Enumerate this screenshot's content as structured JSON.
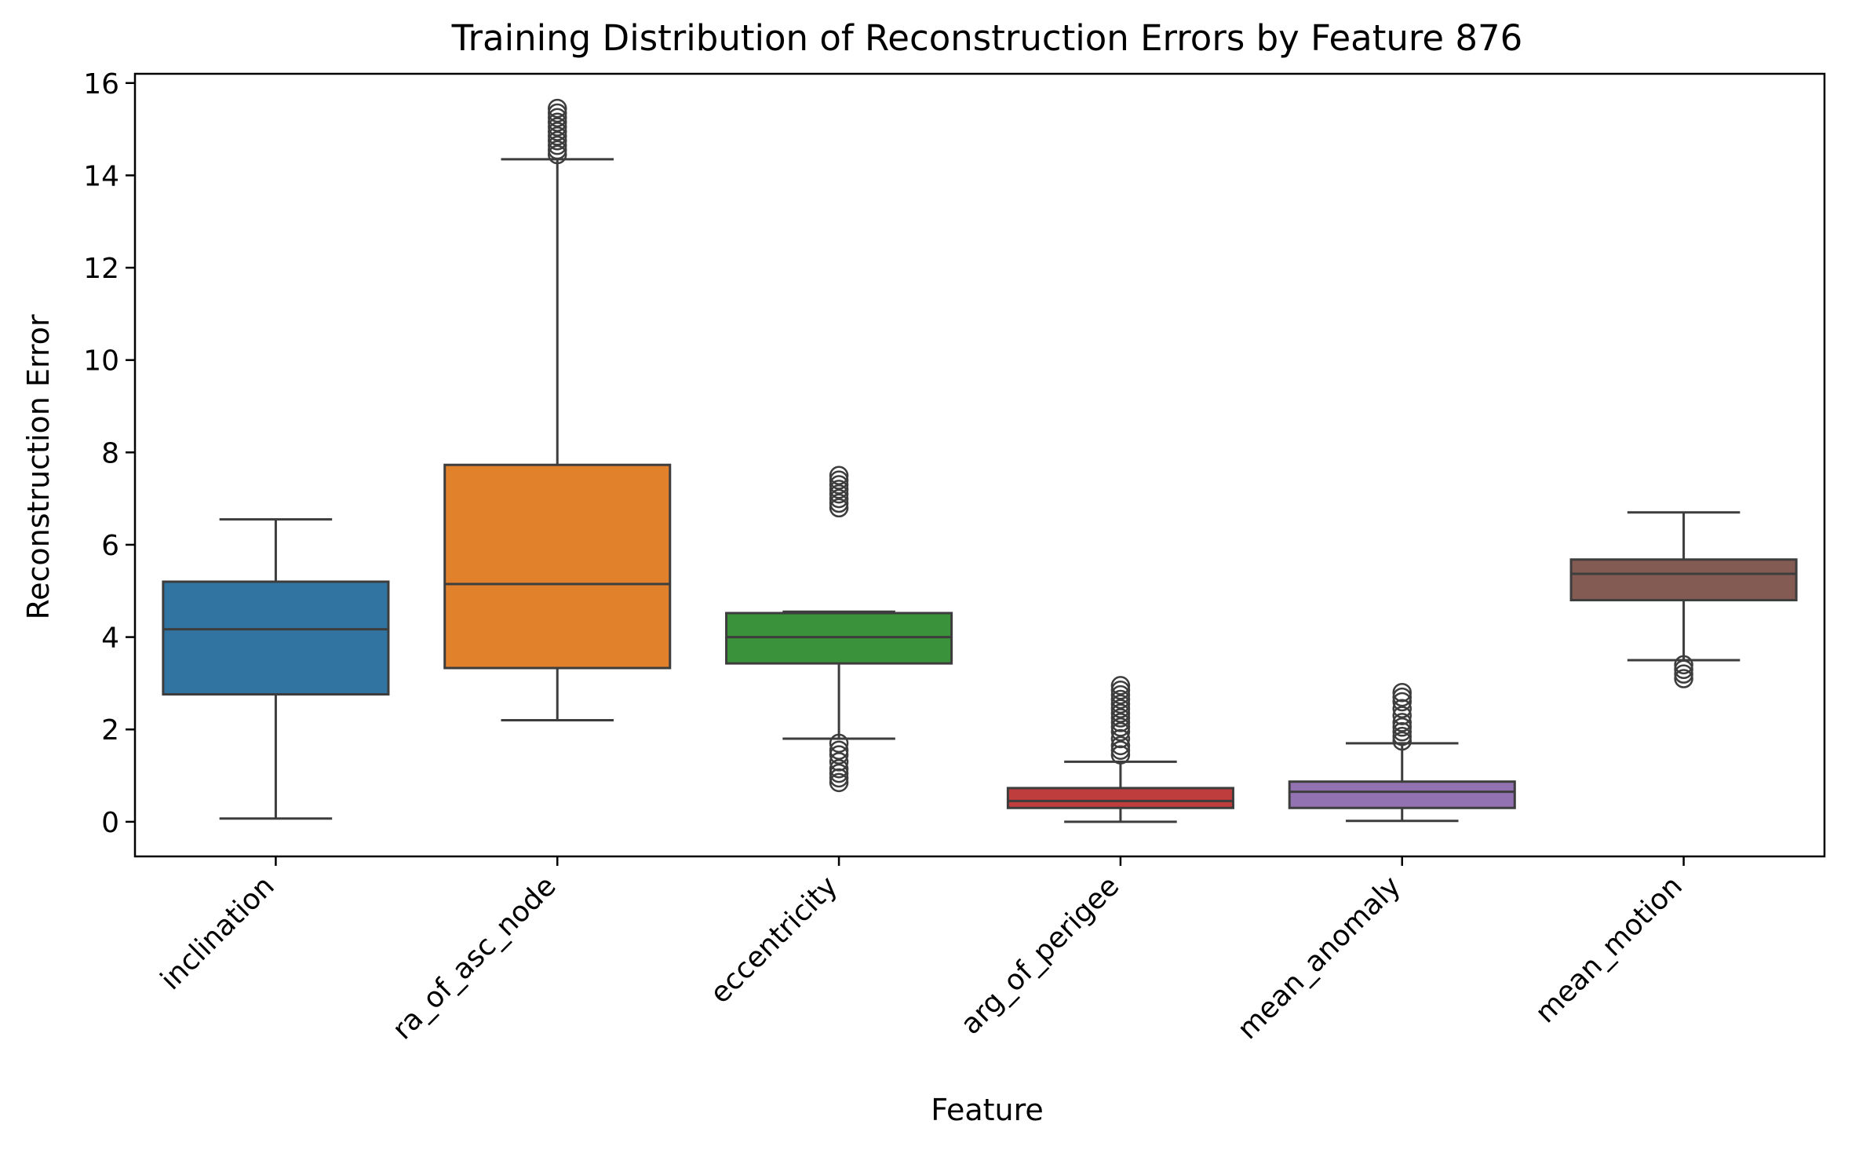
{
  "chart_data": {
    "type": "box",
    "title": "Training Distribution of Reconstruction Errors by Feature 876",
    "xlabel": "Feature",
    "ylabel": "Reconstruction Error",
    "ylim": [
      -0.75,
      16.2
    ],
    "yticks": [
      0,
      2,
      4,
      6,
      8,
      10,
      12,
      14,
      16
    ],
    "categories": [
      "inclination",
      "ra_of_asc_node",
      "eccentricity",
      "arg_of_perigee",
      "mean_anomaly",
      "mean_motion"
    ],
    "series": [
      {
        "category": "inclination",
        "color": "#3274a1",
        "whisker_low": 0.07,
        "q1": 2.76,
        "median": 4.17,
        "q3": 5.2,
        "whisker_high": 6.55,
        "outliers": []
      },
      {
        "category": "ra_of_asc_node",
        "color": "#e1812c",
        "whisker_low": 2.2,
        "q1": 3.33,
        "median": 5.15,
        "q3": 7.73,
        "whisker_high": 14.35,
        "outliers": [
          14.45,
          14.55,
          14.65,
          14.75,
          14.85,
          14.95,
          15.05,
          15.15,
          15.25,
          15.35,
          15.45
        ]
      },
      {
        "category": "eccentricity",
        "color": "#3a923a",
        "whisker_low": 1.8,
        "q1": 3.43,
        "median": 4.0,
        "q3": 4.52,
        "whisker_high": 4.55,
        "outliers": [
          0.85,
          0.95,
          1.05,
          1.15,
          1.3,
          1.45,
          1.55,
          1.7,
          6.8,
          6.9,
          7.0,
          7.1,
          7.2,
          7.3,
          7.4,
          7.5
        ]
      },
      {
        "category": "arg_of_perigee",
        "color": "#c03d3e",
        "whisker_low": 0.0,
        "q1": 0.3,
        "median": 0.45,
        "q3": 0.73,
        "whisker_high": 1.3,
        "outliers": [
          1.45,
          1.55,
          1.65,
          1.8,
          1.95,
          2.05,
          2.15,
          2.25,
          2.35,
          2.45,
          2.55,
          2.65,
          2.75,
          2.85,
          2.95
        ]
      },
      {
        "category": "mean_anomaly",
        "color": "#9372b2",
        "whisker_low": 0.02,
        "q1": 0.3,
        "median": 0.65,
        "q3": 0.87,
        "whisker_high": 1.7,
        "outliers": [
          1.75,
          1.85,
          1.95,
          2.05,
          2.15,
          2.3,
          2.45,
          2.6,
          2.7,
          2.8
        ]
      },
      {
        "category": "mean_motion",
        "color": "#845b53",
        "whisker_low": 3.5,
        "q1": 4.8,
        "median": 5.37,
        "q3": 5.68,
        "whisker_high": 6.7,
        "outliers": [
          3.1,
          3.2,
          3.3,
          3.4
        ]
      }
    ]
  }
}
